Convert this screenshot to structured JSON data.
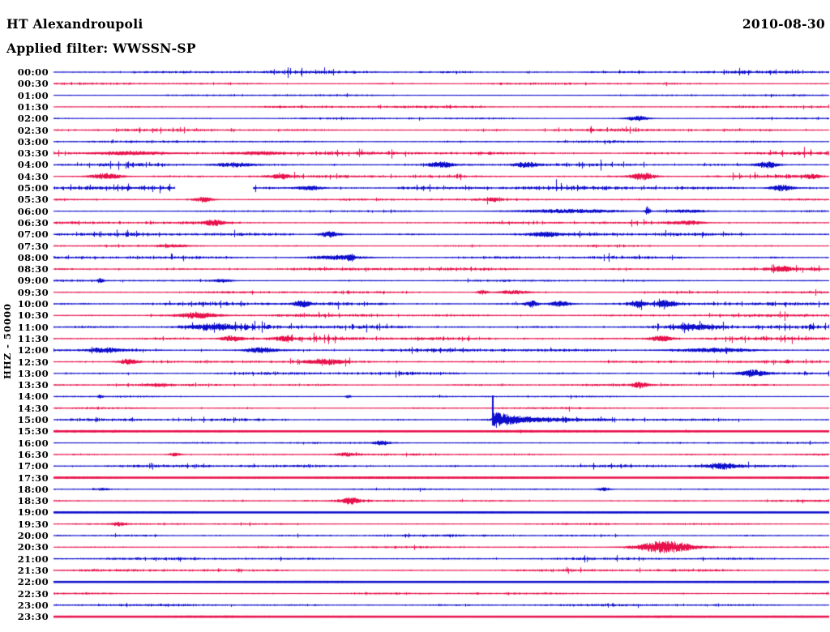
{
  "header": {
    "station": "HT Alexandroupoli",
    "date": "2010-08-30",
    "filter_label": "Applied filter: WWSSN-SP"
  },
  "axis": {
    "y_label": "HHZ - 50000"
  },
  "palette": {
    "blue": "#0d0dcc",
    "red": "#e8114b",
    "background": "#ffffff",
    "text": "#000000"
  },
  "chart_data": {
    "type": "line",
    "subtype": "helicorder-seismogram",
    "title": "HT Alexandroupoli",
    "date": "2010-08-30",
    "filter": "WWSSN-SP",
    "channel_scale_label": "HHZ - 50000",
    "row_duration_min": 30,
    "first_row": "00:00",
    "last_row": "23:30",
    "legend": "none",
    "grid": false,
    "rows": [
      {
        "label": "00:00",
        "color": "blue",
        "noise": 1.2,
        "tick": 0.14,
        "events": []
      },
      {
        "label": "00:30",
        "color": "red",
        "noise": 0.7,
        "tick": 0.06,
        "events": []
      },
      {
        "label": "01:00",
        "color": "blue",
        "noise": 0.55,
        "tick": 0.04,
        "events": []
      },
      {
        "label": "01:30",
        "color": "red",
        "noise": 0.95,
        "tick": 0.08,
        "events": []
      },
      {
        "label": "02:00",
        "color": "blue",
        "noise": 0.65,
        "tick": 0.05,
        "events": [
          {
            "m": 22.6,
            "a": 3,
            "w": 0.8
          }
        ]
      },
      {
        "label": "02:30",
        "color": "red",
        "noise": 1.05,
        "tick": 0.1,
        "events": []
      },
      {
        "label": "03:00",
        "color": "blue",
        "noise": 0.75,
        "tick": 0.06,
        "events": []
      },
      {
        "label": "03:30",
        "color": "red",
        "noise": 1.45,
        "tick": 0.15,
        "events": [
          {
            "m": 3,
            "a": 2,
            "w": 3
          },
          {
            "m": 8,
            "a": 1.8,
            "w": 2
          }
        ]
      },
      {
        "label": "04:00",
        "color": "blue",
        "noise": 1.2,
        "tick": 0.12,
        "events": [
          {
            "m": 7,
            "a": 2.5,
            "w": 1.5
          },
          {
            "m": 15,
            "a": 3,
            "w": 1
          },
          {
            "m": 18.3,
            "a": 3,
            "w": 1
          },
          {
            "m": 27.6,
            "a": 4,
            "w": 0.9
          }
        ]
      },
      {
        "label": "04:30",
        "color": "red",
        "noise": 1.2,
        "tick": 0.12,
        "events": [
          {
            "m": 2,
            "a": 3.5,
            "w": 1.2
          },
          {
            "m": 8.8,
            "a": 2.5,
            "w": 0.8
          },
          {
            "m": 22.8,
            "a": 4.5,
            "w": 0.9
          },
          {
            "m": 29.3,
            "a": 2.5,
            "w": 0.7
          }
        ]
      },
      {
        "label": "05:00",
        "color": "blue",
        "noise": 1.7,
        "tick": 0.18,
        "gaps": [
          [
            4.7,
            7.7
          ]
        ],
        "events": [
          {
            "m": 9.9,
            "a": 2.5,
            "w": 1
          },
          {
            "m": 28.2,
            "a": 3.5,
            "w": 0.9
          }
        ]
      },
      {
        "label": "05:30",
        "color": "red",
        "noise": 0.85,
        "tick": 0.07,
        "events": [
          {
            "m": 5.8,
            "a": 3,
            "w": 0.7
          },
          {
            "m": 17,
            "a": 2,
            "w": 0.5
          }
        ]
      },
      {
        "label": "06:00",
        "color": "blue",
        "noise": 0.6,
        "tick": 0.05,
        "events": [
          {
            "m": 20,
            "a": 2.2,
            "w": 4
          },
          {
            "m": 23,
            "a": 6,
            "w": 0.2
          },
          {
            "m": 24.5,
            "a": 1.5,
            "w": 1.5
          }
        ]
      },
      {
        "label": "06:30",
        "color": "red",
        "noise": 0.95,
        "tick": 0.08,
        "events": [
          {
            "m": 6.2,
            "a": 3.5,
            "w": 0.8
          },
          {
            "m": 24.6,
            "a": 2,
            "w": 1.2
          }
        ]
      },
      {
        "label": "07:00",
        "color": "blue",
        "noise": 1.4,
        "tick": 0.14,
        "events": [
          {
            "m": 10.7,
            "a": 3.2,
            "w": 0.8
          },
          {
            "m": 19,
            "a": 2.8,
            "w": 1
          }
        ]
      },
      {
        "label": "07:30",
        "color": "red",
        "noise": 0.65,
        "tick": 0.05,
        "events": [
          {
            "m": 4.6,
            "a": 1.4,
            "w": 1.2
          }
        ]
      },
      {
        "label": "08:00",
        "color": "blue",
        "noise": 1.15,
        "tick": 0.1,
        "events": [
          {
            "m": 11,
            "a": 2.4,
            "w": 2
          },
          {
            "m": 11.5,
            "a": 4,
            "w": 0.25
          }
        ]
      },
      {
        "label": "08:30",
        "color": "red",
        "noise": 1.35,
        "tick": 0.13,
        "events": [
          {
            "m": 28.2,
            "a": 3,
            "w": 0.8
          }
        ]
      },
      {
        "label": "09:00",
        "color": "blue",
        "noise": 0.7,
        "tick": 0.05,
        "events": [
          {
            "m": 1.8,
            "a": 2.8,
            "w": 0.25
          },
          {
            "m": 6.5,
            "a": 1.6,
            "w": 0.8
          }
        ]
      },
      {
        "label": "09:30",
        "color": "red",
        "noise": 0.85,
        "tick": 0.06,
        "events": [
          {
            "m": 16.6,
            "a": 2.4,
            "w": 0.4
          },
          {
            "m": 17.8,
            "a": 2.2,
            "w": 1.2
          }
        ]
      },
      {
        "label": "10:00",
        "color": "blue",
        "noise": 1.4,
        "tick": 0.13,
        "events": [
          {
            "m": 9.6,
            "a": 3.8,
            "w": 0.7
          },
          {
            "m": 18.5,
            "a": 4,
            "w": 0.5
          },
          {
            "m": 19.6,
            "a": 3.2,
            "w": 0.8
          },
          {
            "m": 22.6,
            "a": 3.8,
            "w": 0.5
          },
          {
            "m": 23.7,
            "a": 3.5,
            "w": 0.7
          }
        ]
      },
      {
        "label": "10:30",
        "color": "red",
        "noise": 1.15,
        "tick": 0.1,
        "events": [
          {
            "m": 5.6,
            "a": 3.2,
            "w": 1.6
          }
        ]
      },
      {
        "label": "11:00",
        "color": "blue",
        "noise": 1.8,
        "tick": 0.18,
        "events": [
          {
            "m": 6.1,
            "a": 2.6,
            "w": 2
          },
          {
            "m": 24.8,
            "a": 2.6,
            "w": 1.4
          }
        ]
      },
      {
        "label": "11:30",
        "color": "red",
        "noise": 1.6,
        "tick": 0.16,
        "events": [
          {
            "m": 6.9,
            "a": 3.2,
            "w": 0.9
          },
          {
            "m": 8.9,
            "a": 2.8,
            "w": 0.6
          },
          {
            "m": 23.5,
            "a": 3.4,
            "w": 0.9
          }
        ]
      },
      {
        "label": "12:00",
        "color": "blue",
        "noise": 1.4,
        "tick": 0.14,
        "events": [
          {
            "m": 2,
            "a": 2.4,
            "w": 1.4
          },
          {
            "m": 8,
            "a": 3.2,
            "w": 1.2
          },
          {
            "m": 25.5,
            "a": 2.2,
            "w": 3
          }
        ]
      },
      {
        "label": "12:30",
        "color": "red",
        "noise": 1.05,
        "tick": 0.09,
        "events": [
          {
            "m": 2.9,
            "a": 3.2,
            "w": 0.8
          },
          {
            "m": 10.5,
            "a": 2.8,
            "w": 1.4
          }
        ]
      },
      {
        "label": "13:00",
        "color": "blue",
        "noise": 1.25,
        "tick": 0.11,
        "events": [
          {
            "m": 27.1,
            "a": 3.8,
            "w": 1
          }
        ]
      },
      {
        "label": "13:30",
        "color": "red",
        "noise": 0.85,
        "tick": 0.06,
        "events": [
          {
            "m": 4,
            "a": 1.4,
            "w": 0.8
          },
          {
            "m": 22.7,
            "a": 3.6,
            "w": 0.6
          }
        ]
      },
      {
        "label": "14:00",
        "color": "blue",
        "noise": 0.5,
        "tick": 0.03,
        "events": [
          {
            "m": 1.8,
            "a": 2.2,
            "w": 0.2
          },
          {
            "m": 11.4,
            "a": 1.8,
            "w": 0.2
          }
        ]
      },
      {
        "label": "14:30",
        "color": "red",
        "noise": 0.6,
        "tick": 0.05,
        "events": []
      },
      {
        "label": "15:00",
        "color": "blue",
        "noise": 1.05,
        "tick": 0.09,
        "events": [
          {
            "m": 17,
            "a": 30,
            "w": 0.3,
            "type": "mainshock"
          }
        ]
      },
      {
        "label": "15:30",
        "color": "red",
        "noise": 0.3,
        "tick": 0.02,
        "flat": true,
        "events": []
      },
      {
        "label": "16:00",
        "color": "blue",
        "noise": 0.6,
        "tick": 0.04,
        "events": [
          {
            "m": 12.7,
            "a": 2.8,
            "w": 0.6
          }
        ]
      },
      {
        "label": "16:30",
        "color": "red",
        "noise": 0.7,
        "tick": 0.05,
        "events": [
          {
            "m": 4.7,
            "a": 1.8,
            "w": 0.5
          },
          {
            "m": 11.3,
            "a": 2,
            "w": 0.7
          }
        ]
      },
      {
        "label": "17:00",
        "color": "blue",
        "noise": 1.1,
        "tick": 0.11,
        "events": [
          {
            "m": 25.9,
            "a": 3,
            "w": 1.3
          }
        ]
      },
      {
        "label": "17:30",
        "color": "red",
        "noise": 0.3,
        "tick": 0.02,
        "flat": true,
        "events": []
      },
      {
        "label": "18:00",
        "color": "blue",
        "noise": 0.55,
        "tick": 0.04,
        "events": [
          {
            "m": 1.9,
            "a": 1.4,
            "w": 0.5
          },
          {
            "m": 21.3,
            "a": 2,
            "w": 0.5
          }
        ]
      },
      {
        "label": "18:30",
        "color": "red",
        "noise": 0.75,
        "tick": 0.06,
        "events": [
          {
            "m": 11.5,
            "a": 4,
            "w": 0.7
          }
        ]
      },
      {
        "label": "19:00",
        "color": "blue",
        "noise": 0.15,
        "tick": 0,
        "flat": true,
        "events": []
      },
      {
        "label": "19:30",
        "color": "red",
        "noise": 0.55,
        "tick": 0.04,
        "events": [
          {
            "m": 2.5,
            "a": 2,
            "w": 0.5
          }
        ]
      },
      {
        "label": "20:00",
        "color": "blue",
        "noise": 0.85,
        "tick": 0.07,
        "events": []
      },
      {
        "label": "20:30",
        "color": "red",
        "noise": 0.65,
        "tick": 0.05,
        "events": [
          {
            "m": 23.7,
            "a": 7.5,
            "w": 2.2
          }
        ]
      },
      {
        "label": "21:00",
        "color": "blue",
        "noise": 0.95,
        "tick": 0.08,
        "events": []
      },
      {
        "label": "21:30",
        "color": "red",
        "noise": 0.95,
        "tick": 0.08,
        "events": []
      },
      {
        "label": "22:00",
        "color": "blue",
        "noise": 0.15,
        "tick": 0,
        "flat": true,
        "events": []
      },
      {
        "label": "22:30",
        "color": "red",
        "noise": 0.75,
        "tick": 0.06,
        "events": []
      },
      {
        "label": "23:00",
        "color": "blue",
        "noise": 0.85,
        "tick": 0.07,
        "events": []
      },
      {
        "label": "23:30",
        "color": "red",
        "noise": 0.2,
        "tick": 0,
        "flat": true,
        "events": []
      }
    ]
  }
}
